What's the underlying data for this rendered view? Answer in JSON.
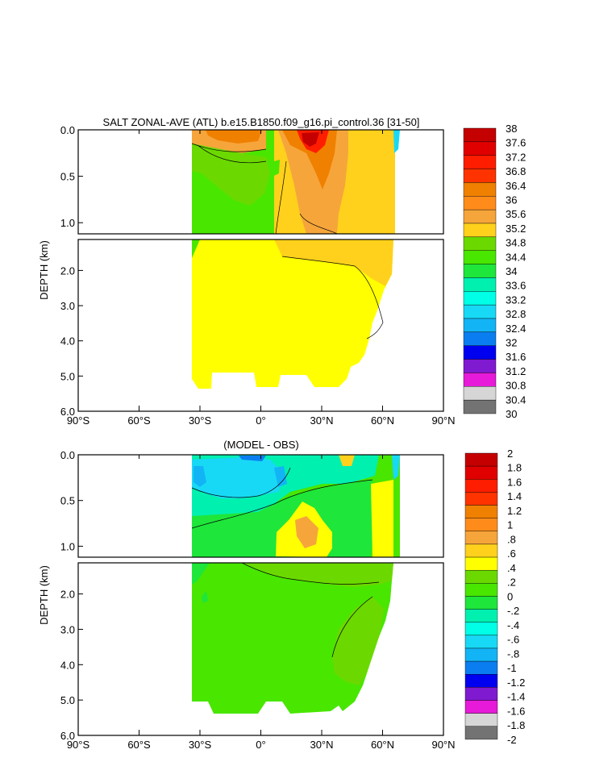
{
  "chart_data": [
    {
      "type": "heatmap",
      "title": "SALT ZONAL-AVE (ATL) b.e15.B1850.f09_g16.pi_control.36 [31-50]",
      "xlabel": "",
      "ylabel": "DEPTH (km)",
      "x_ticks": [
        "90°S",
        "60°S",
        "30°S",
        "0°",
        "30°N",
        "60°N",
        "90°N"
      ],
      "x_tick_values": [
        -90,
        -60,
        -30,
        0,
        30,
        60,
        90
      ],
      "xlim": [
        -90,
        90
      ],
      "upper_panel": {
        "ylim": [
          0,
          1.12
        ],
        "y_ticks": [
          "0.0",
          "0.5",
          "1.0"
        ],
        "y_tick_values": [
          0,
          0.5,
          1.0
        ]
      },
      "lower_panel": {
        "ylim": [
          1.12,
          6.0
        ],
        "y_ticks": [
          "2.0",
          "3.0",
          "4.0",
          "5.0",
          "6.0"
        ],
        "y_tick_values": [
          2,
          3,
          4,
          5,
          6
        ]
      },
      "colorbar": {
        "labels": [
          "38",
          "37.6",
          "37.2",
          "36.8",
          "36.4",
          "36",
          "35.6",
          "35.2",
          "34.8",
          "34.4",
          "34",
          "33.6",
          "33.2",
          "32.8",
          "32.4",
          "32",
          "31.6",
          "31.2",
          "30.8",
          "30.4",
          "30"
        ],
        "colors": [
          "#c40000",
          "#e10000",
          "#ff1d00",
          "#ff3300",
          "#f08000",
          "#ff8c1a",
          "#f6a53b",
          "#ffd11c",
          "#6bd900",
          "#49e600",
          "#1ee63a",
          "#00f0b0",
          "#00ffe6",
          "#18d9f5",
          "#12b4f5",
          "#0a7ef0",
          "#0000f0",
          "#7f1ad1",
          "#e61ad8",
          "#d6d6d6",
          "#737373"
        ]
      },
      "annotations": [
        "max salinity core near 25°N, surface"
      ]
    },
    {
      "type": "heatmap",
      "title": "(MODEL - OBS)",
      "xlabel": "",
      "ylabel": "DEPTH (km)",
      "x_ticks": [
        "90°S",
        "60°S",
        "30°S",
        "0°",
        "30°N",
        "60°N",
        "90°N"
      ],
      "x_tick_values": [
        -90,
        -60,
        -30,
        0,
        30,
        60,
        90
      ],
      "xlim": [
        -90,
        90
      ],
      "upper_panel": {
        "ylim": [
          0,
          1.12
        ],
        "y_ticks": [
          "0.0",
          "0.5",
          "1.0"
        ],
        "y_tick_values": [
          0,
          0.5,
          1.0
        ]
      },
      "lower_panel": {
        "ylim": [
          1.12,
          6.0
        ],
        "y_ticks": [
          "2.0",
          "3.0",
          "4.0",
          "5.0",
          "6.0"
        ],
        "y_tick_values": [
          2,
          3,
          4,
          5,
          6
        ]
      },
      "colorbar": {
        "labels": [
          "2",
          "1.8",
          "1.6",
          "1.4",
          "1.2",
          "1",
          ".8",
          ".6",
          ".4",
          ".2",
          "0",
          "-.2",
          "-.4",
          "-.6",
          "-.8",
          "-1",
          "-1.2",
          "-1.4",
          "-1.6",
          "-1.8",
          "-2"
        ],
        "colors": [
          "#c40000",
          "#e10000",
          "#ff1d00",
          "#ff3300",
          "#f08000",
          "#ff8c1a",
          "#f6a53b",
          "#ffd11c",
          "#ffff00",
          "#6bd900",
          "#49e600",
          "#1ee63a",
          "#00f0b0",
          "#00ffe6",
          "#18d9f5",
          "#12b4f5",
          "#0a7ef0",
          "#0000f0",
          "#7f1ad1",
          "#e61ad8",
          "#d6d6d6",
          "#737373"
        ]
      }
    }
  ]
}
